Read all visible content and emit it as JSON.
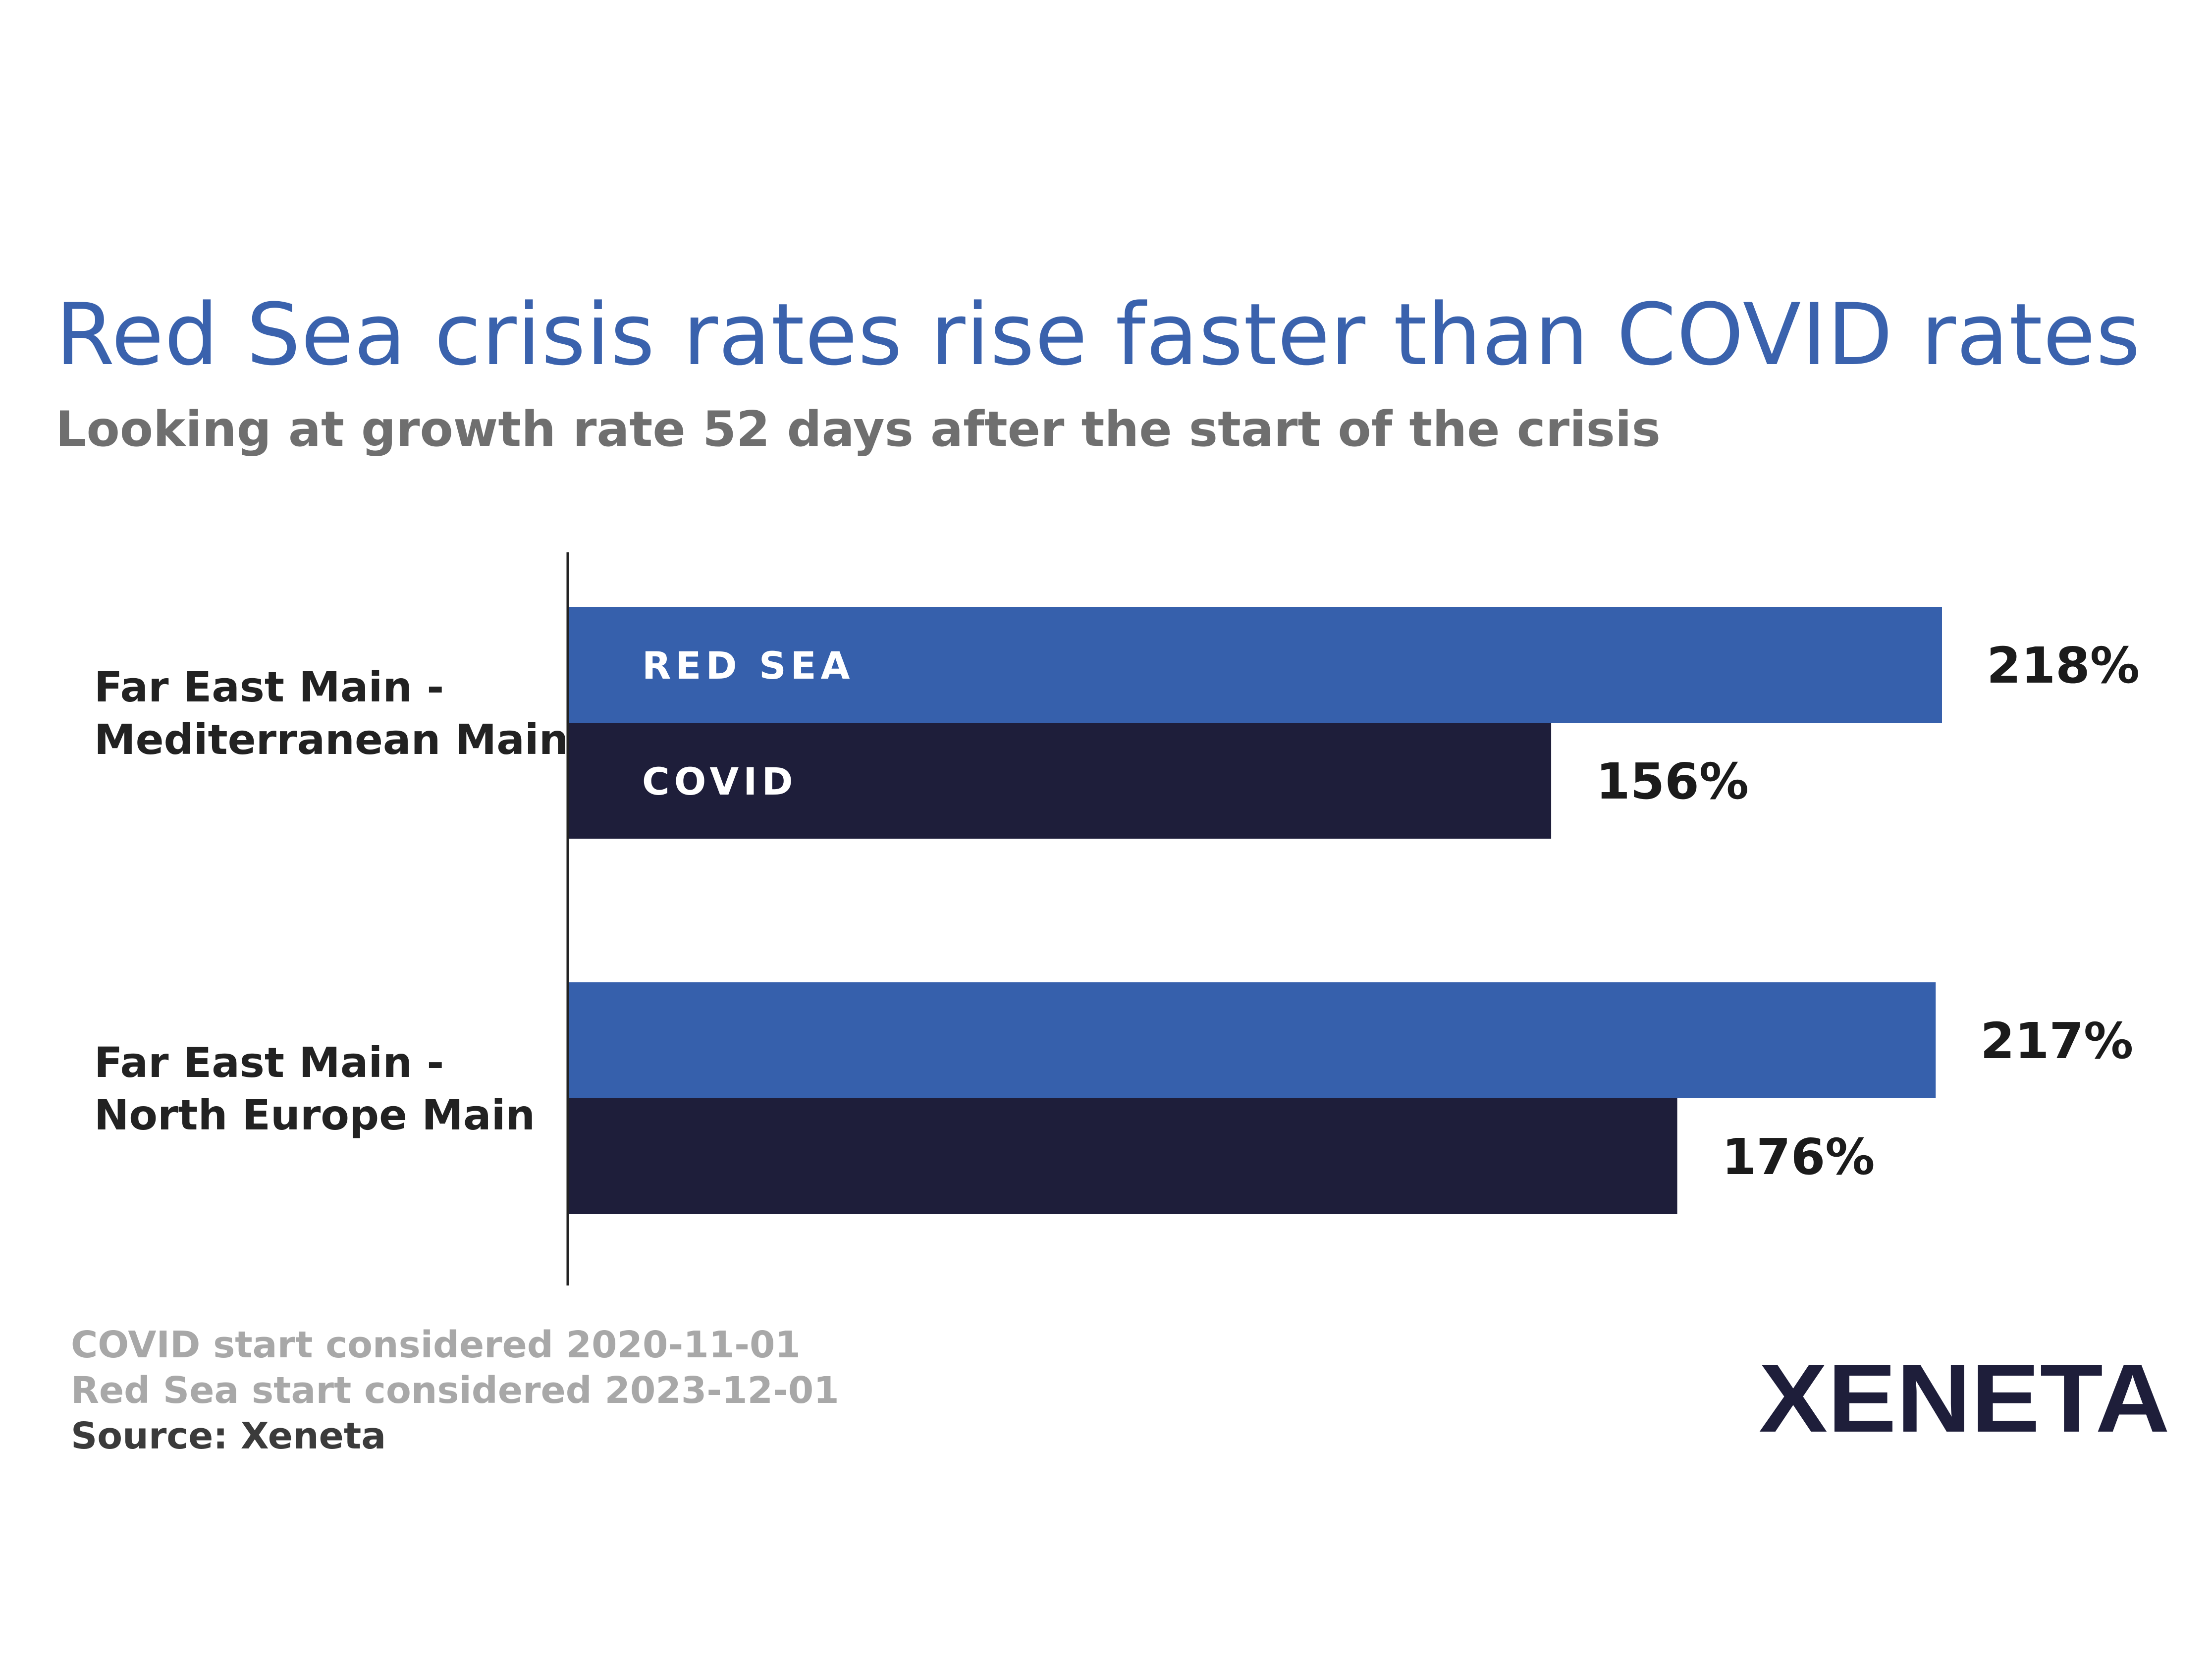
{
  "header": {
    "title": "Red Sea crisis rates rise faster than COVID rates",
    "subtitle": "Looking at growth rate 52 days after the start of the crisis"
  },
  "chart_data": {
    "type": "bar",
    "orientation": "horizontal",
    "categories": [
      [
        "Far East Main -",
        "Mediterranean Main"
      ],
      [
        "Far East Main -",
        "North Europe Main"
      ]
    ],
    "series": [
      {
        "name": "RED SEA",
        "values": [
          218,
          217
        ],
        "labels": [
          "218%",
          "217%"
        ],
        "color": "#3660ac"
      },
      {
        "name": "COVID",
        "values": [
          156,
          176
        ],
        "labels": [
          "156%",
          "176%"
        ],
        "color": "#1e1e3a"
      }
    ],
    "unit": "%",
    "xlim": [
      0,
      220
    ],
    "grid": false,
    "legend": "inside-first-group-bars"
  },
  "notes": [
    "COVID start considered 2020-11-01",
    "Red Sea start considered 2023-12-01",
    "Source: Xeneta"
  ],
  "logo": {
    "text": "XENETA",
    "color": "#1e1e3a"
  }
}
